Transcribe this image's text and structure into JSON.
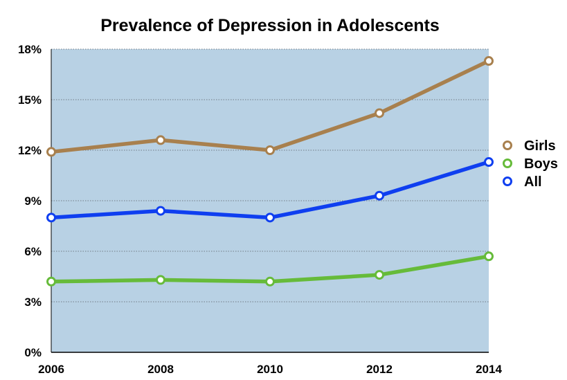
{
  "chart_data": {
    "type": "line",
    "title": "Prevalence of Depression in Adolescents",
    "xlabel": "",
    "ylabel": "",
    "x": [
      "2006",
      "2008",
      "2010",
      "2012",
      "2014"
    ],
    "y_ticks": [
      "0%",
      "3%",
      "6%",
      "9%",
      "12%",
      "15%",
      "18%"
    ],
    "ylim": [
      0,
      18
    ],
    "grid": true,
    "legend_position": "right",
    "plot_background": "#b8d1e4",
    "series": [
      {
        "name": "Girls",
        "color": "#a8804e",
        "values": [
          11.9,
          12.6,
          12.0,
          14.2,
          17.3
        ]
      },
      {
        "name": "Boys",
        "color": "#66bb3a",
        "values": [
          4.2,
          4.3,
          4.2,
          4.6,
          5.7
        ]
      },
      {
        "name": "All",
        "color": "#0f3ff0",
        "values": [
          8.0,
          8.4,
          8.0,
          9.3,
          11.3
        ]
      }
    ]
  }
}
